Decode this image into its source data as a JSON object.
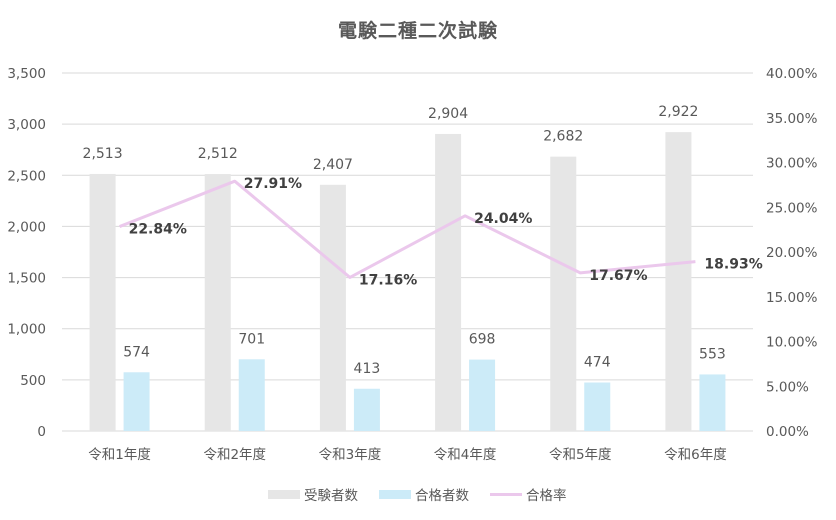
{
  "chart_data": {
    "type": "bar",
    "title": "電験二種二次試験",
    "categories": [
      "令和1年度",
      "令和2年度",
      "令和3年度",
      "令和4年度",
      "令和5年度",
      "令和6年度"
    ],
    "series": [
      {
        "name": "受験者数",
        "type": "bar",
        "axis": "primary",
        "color": "#E6E6E6",
        "values": [
          2513,
          2512,
          2407,
          2904,
          2682,
          2922
        ],
        "labels": [
          "2,513",
          "2,512",
          "2,407",
          "2,904",
          "2,682",
          "2,922"
        ]
      },
      {
        "name": "合格者数",
        "type": "bar",
        "axis": "primary",
        "color": "#CCEBF8",
        "values": [
          574,
          701,
          413,
          698,
          474,
          553
        ],
        "labels": [
          "574",
          "701",
          "413",
          "698",
          "474",
          "553"
        ]
      },
      {
        "name": "合格率",
        "type": "line",
        "axis": "secondary",
        "color": "#EBC8EC",
        "values": [
          22.84,
          27.91,
          17.16,
          24.04,
          17.67,
          18.93
        ],
        "labels": [
          "22.84%",
          "27.91%",
          "17.16%",
          "24.04%",
          "17.67%",
          "18.93%"
        ]
      }
    ],
    "xlabel": "",
    "ylabel": "",
    "ylim": [
      0,
      3500
    ],
    "y_ticks": [
      "0",
      "500",
      "1,000",
      "1,500",
      "2,000",
      "2,500",
      "3,000",
      "3,500"
    ],
    "y2lim": [
      0,
      40
    ],
    "y2_ticks": [
      "0.00%",
      "5.00%",
      "10.00%",
      "15.00%",
      "20.00%",
      "25.00%",
      "30.00%",
      "35.00%",
      "40.00%"
    ],
    "grid": true,
    "legend_position": "bottom"
  },
  "legend": [
    {
      "label": "受験者数"
    },
    {
      "label": "合格者数"
    },
    {
      "label": "合格率"
    }
  ]
}
